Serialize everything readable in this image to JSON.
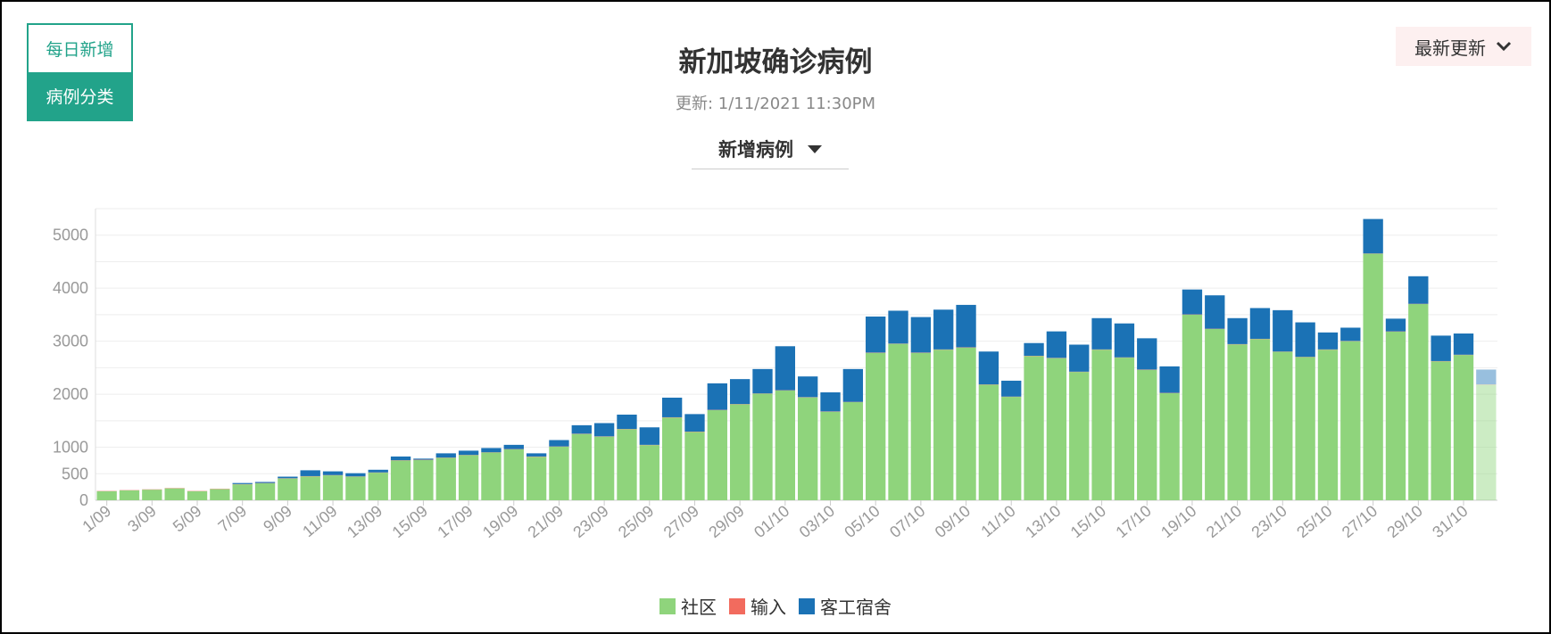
{
  "toggle": {
    "daily_label": "每日新增",
    "category_label": "病例分类"
  },
  "header": {
    "title": "新加坡确诊病例",
    "updated": "更新: 1/11/2021 11:30PM"
  },
  "metric_select": {
    "label": "新增病例"
  },
  "sort_select": {
    "label": "最新更新"
  },
  "colors": {
    "community": "#8fd47c",
    "imported": "#f26b5e",
    "dormitory": "#1b72b5",
    "accent": "#22a38a"
  },
  "legend": [
    {
      "label": "社区",
      "color": "#8fd47c"
    },
    {
      "label": "输入",
      "color": "#f26b5e"
    },
    {
      "label": "客工宿舍",
      "color": "#1b72b5"
    }
  ],
  "chart_data": {
    "type": "bar",
    "stacked": true,
    "title": "新加坡确诊病例",
    "ylim": [
      0,
      5500
    ],
    "y_ticks": [
      0,
      500,
      1000,
      2000,
      3000,
      4000,
      5000
    ],
    "grid": true,
    "legend_position": "bottom",
    "categories": [
      "1/09",
      "2/09",
      "3/09",
      "4/09",
      "5/09",
      "6/09",
      "7/09",
      "8/09",
      "9/09",
      "10/09",
      "11/09",
      "12/09",
      "13/09",
      "14/09",
      "15/09",
      "16/09",
      "17/09",
      "18/09",
      "19/09",
      "20/09",
      "21/09",
      "22/09",
      "23/09",
      "24/09",
      "25/09",
      "26/09",
      "27/09",
      "28/09",
      "29/09",
      "30/09",
      "01/10",
      "02/10",
      "03/10",
      "04/10",
      "05/10",
      "06/10",
      "07/10",
      "08/10",
      "09/10",
      "10/10",
      "11/10",
      "12/10",
      "13/10",
      "14/10",
      "15/10",
      "16/10",
      "17/10",
      "18/10",
      "19/10",
      "20/10",
      "21/10",
      "22/10",
      "23/10",
      "24/10",
      "25/10",
      "26/10",
      "27/10",
      "28/10",
      "29/10",
      "30/10",
      "31/10",
      "01/11"
    ],
    "x_tick_labels": [
      "1/09",
      "3/09",
      "5/09",
      "7/09",
      "9/09",
      "11/09",
      "13/09",
      "15/09",
      "17/09",
      "19/09",
      "21/09",
      "23/09",
      "25/09",
      "27/09",
      "29/09",
      "01/10",
      "03/10",
      "05/10",
      "07/10",
      "09/10",
      "11/10",
      "13/10",
      "15/10",
      "17/10",
      "19/10",
      "21/10",
      "23/10",
      "25/10",
      "27/10",
      "29/10",
      "31/10"
    ],
    "series": [
      {
        "name": "社区",
        "color": "#8fd47c",
        "values": [
          170,
          185,
          200,
          225,
          170,
          210,
          300,
          320,
          410,
          450,
          470,
          445,
          520,
          750,
          760,
          800,
          850,
          900,
          960,
          820,
          1010,
          1250,
          1200,
          1340,
          1040,
          1560,
          1290,
          1700,
          1810,
          2010,
          2070,
          1940,
          1670,
          1850,
          2780,
          2950,
          2780,
          2840,
          2880,
          2180,
          1950,
          2720,
          2680,
          2420,
          2840,
          2690,
          2460,
          2020,
          3500,
          3230,
          2940,
          3040,
          2800,
          2700,
          2840,
          3000,
          4650,
          3180,
          3700,
          2620,
          2740,
          2180
        ]
      },
      {
        "name": "输入",
        "color": "#f26b5e",
        "values": [
          5,
          5,
          5,
          5,
          5,
          5,
          5,
          5,
          5,
          5,
          5,
          5,
          5,
          5,
          5,
          5,
          5,
          5,
          5,
          5,
          5,
          5,
          5,
          5,
          5,
          5,
          5,
          5,
          5,
          5,
          5,
          5,
          5,
          5,
          5,
          5,
          5,
          5,
          5,
          5,
          5,
          5,
          5,
          5,
          5,
          5,
          5,
          5,
          5,
          5,
          5,
          5,
          5,
          5,
          5,
          5,
          5,
          5,
          5,
          5,
          5,
          5
        ]
      },
      {
        "name": "客工宿舍",
        "color": "#1b72b5",
        "values": [
          0,
          0,
          0,
          0,
          0,
          0,
          20,
          20,
          30,
          110,
          70,
          60,
          50,
          70,
          20,
          80,
          80,
          80,
          80,
          60,
          120,
          160,
          250,
          270,
          330,
          370,
          330,
          500,
          470,
          460,
          830,
          390,
          360,
          620,
          680,
          620,
          670,
          750,
          800,
          620,
          300,
          240,
          500,
          510,
          590,
          640,
          590,
          500,
          470,
          630,
          490,
          580,
          780,
          650,
          320,
          250,
          650,
          240,
          520,
          480,
          400,
          280
        ]
      }
    ]
  }
}
